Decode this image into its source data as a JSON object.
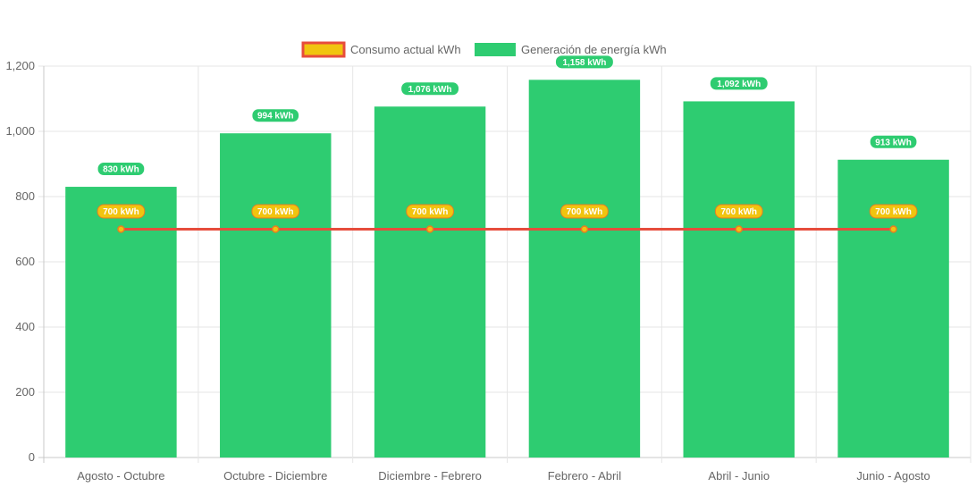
{
  "chart_data": {
    "type": "bar",
    "categories": [
      "Agosto - Octubre",
      "Octubre - Diciembre",
      "Diciembre - Febrero",
      "Febrero - Abril",
      "Abril - Junio",
      "Junio - Agosto"
    ],
    "series": [
      {
        "name": "Consumo actual kWh",
        "type": "line",
        "values": [
          700,
          700,
          700,
          700,
          700,
          700
        ],
        "labels": [
          "700 kWh",
          "700 kWh",
          "700 kWh",
          "700 kWh",
          "700 kWh",
          "700 kWh"
        ],
        "line_color": "#e74c3c",
        "fill_color": "#f1c40f"
      },
      {
        "name": "Generación de energía kWh",
        "type": "bar",
        "values": [
          830,
          994,
          1076,
          1158,
          1092,
          913
        ],
        "labels": [
          "830 kWh",
          "994 kWh",
          "1,076 kWh",
          "1,158 kWh",
          "1,092 kWh",
          "913 kWh"
        ],
        "color": "#2ecc71"
      }
    ],
    "yticks": [
      "0",
      "200",
      "400",
      "600",
      "800",
      "1,000",
      "1,200"
    ],
    "ylim": [
      0,
      1200
    ],
    "grid": true,
    "legend_position": "top-center"
  }
}
